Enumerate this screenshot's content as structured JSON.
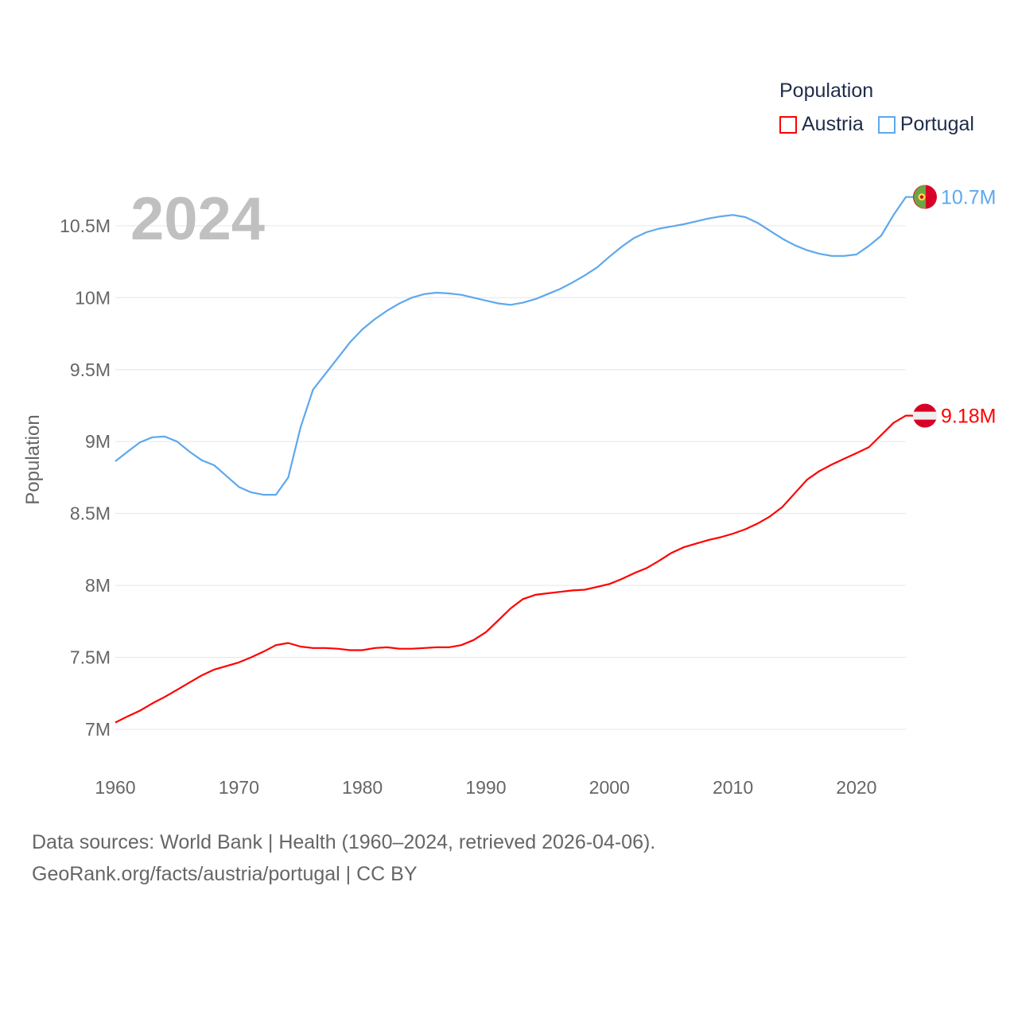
{
  "chart_data": {
    "type": "line",
    "title": "Population",
    "xlabel": "",
    "ylabel": "Population",
    "xlim": [
      1960,
      2024
    ],
    "ylim": [
      6.85,
      10.85
    ],
    "unit": "M",
    "x_ticks": [
      1960,
      1970,
      1980,
      1990,
      2000,
      2010,
      2020
    ],
    "x_tick_labels": [
      "1960",
      "1970",
      "1980",
      "1990",
      "2000",
      "2010",
      "2020"
    ],
    "y_ticks": [
      7,
      7.5,
      8,
      8.5,
      9,
      9.5,
      10,
      10.5
    ],
    "y_tick_labels": [
      "7M",
      "7.5M",
      "8M",
      "8.5M",
      "9M",
      "9.5M",
      "10M",
      "10.5M"
    ],
    "grid": true,
    "legend_placement": "top-right",
    "current_year": "2024",
    "x": [
      1960,
      1961,
      1962,
      1963,
      1964,
      1965,
      1966,
      1967,
      1968,
      1969,
      1970,
      1971,
      1972,
      1973,
      1974,
      1975,
      1976,
      1977,
      1978,
      1979,
      1980,
      1981,
      1982,
      1983,
      1984,
      1985,
      1986,
      1987,
      1988,
      1989,
      1990,
      1991,
      1992,
      1993,
      1994,
      1995,
      1996,
      1997,
      1998,
      1999,
      2000,
      2001,
      2002,
      2003,
      2004,
      2005,
      2006,
      2007,
      2008,
      2009,
      2010,
      2011,
      2012,
      2013,
      2014,
      2015,
      2016,
      2017,
      2018,
      2019,
      2020,
      2021,
      2022,
      2023,
      2024
    ],
    "series": [
      {
        "name": "Austria",
        "color": "#ff0000",
        "end_label": "9.18M",
        "values": [
          7.047,
          7.09,
          7.13,
          7.18,
          7.225,
          7.275,
          7.325,
          7.375,
          7.415,
          7.44,
          7.465,
          7.5,
          7.54,
          7.585,
          7.6,
          7.575,
          7.565,
          7.565,
          7.56,
          7.55,
          7.55,
          7.565,
          7.57,
          7.56,
          7.56,
          7.565,
          7.57,
          7.57,
          7.585,
          7.62,
          7.675,
          7.757,
          7.84,
          7.905,
          7.935,
          7.945,
          7.955,
          7.965,
          7.97,
          7.99,
          8.01,
          8.045,
          8.085,
          8.12,
          8.17,
          8.225,
          8.265,
          8.29,
          8.315,
          8.335,
          8.36,
          8.39,
          8.43,
          8.48,
          8.545,
          8.64,
          8.735,
          8.795,
          8.84,
          8.88,
          8.92,
          8.96,
          9.045,
          9.13,
          9.18
        ]
      },
      {
        "name": "Portugal",
        "color": "#5ea8ee",
        "end_label": "10.7M",
        "values": [
          8.863,
          8.93,
          8.995,
          9.03,
          9.035,
          9.0,
          8.93,
          8.87,
          8.835,
          8.76,
          8.685,
          8.647,
          8.63,
          8.63,
          8.75,
          9.1,
          9.36,
          9.47,
          9.58,
          9.69,
          9.78,
          9.85,
          9.91,
          9.96,
          10.0,
          10.025,
          10.035,
          10.03,
          10.02,
          10.0,
          9.98,
          9.96,
          9.95,
          9.965,
          9.99,
          10.025,
          10.06,
          10.105,
          10.155,
          10.21,
          10.285,
          10.355,
          10.415,
          10.455,
          10.48,
          10.495,
          10.51,
          10.53,
          10.55,
          10.565,
          10.575,
          10.56,
          10.52,
          10.465,
          10.41,
          10.365,
          10.33,
          10.305,
          10.29,
          10.29,
          10.3,
          10.36,
          10.43,
          10.575,
          10.7
        ]
      }
    ]
  },
  "footer": {
    "source": "Data sources: World Bank | Health (1960–2024, retrieved 2026-04-06).",
    "credit": "GeoRank.org/facts/austria/portugal | CC BY"
  }
}
